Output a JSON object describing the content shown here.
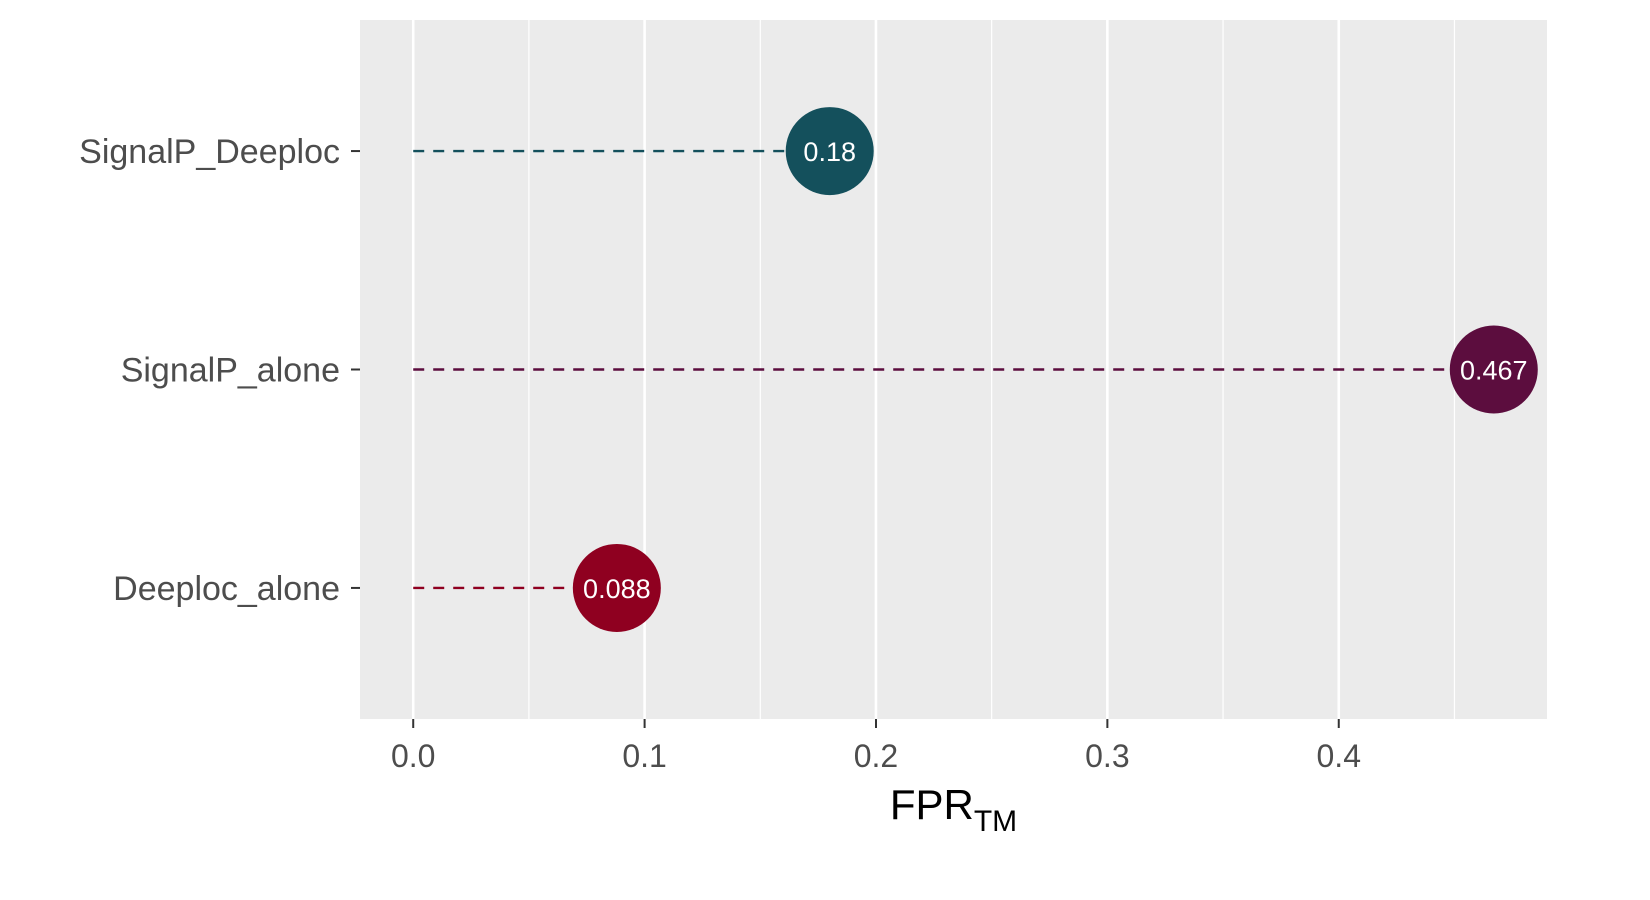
{
  "chart_data": {
    "type": "lollipop",
    "categories": [
      "SignalP_Deeploc",
      "SignalP_alone",
      "Deeploc_alone"
    ],
    "values": [
      0.18,
      0.467,
      0.088
    ],
    "point_labels": [
      "0.18",
      "0.467",
      "0.088"
    ],
    "colors": [
      "#14505c",
      "#5c0d3e",
      "#8f0020"
    ],
    "xlabel": "FPR",
    "xlabel_subscript": "TM",
    "ylabel": "",
    "title": "",
    "xlim": [
      -0.023,
      0.49
    ],
    "x_ticks": [
      0.0,
      0.1,
      0.2,
      0.3,
      0.4
    ],
    "x_tick_labels": [
      "0.0",
      "0.1",
      "0.2",
      "0.3",
      "0.4"
    ],
    "x_minor_ticks": [
      0.05,
      0.15,
      0.25,
      0.35,
      0.45
    ],
    "panel_background": "#ebebeb",
    "grid_color": "#ffffff",
    "grid": true,
    "legend": "none"
  }
}
